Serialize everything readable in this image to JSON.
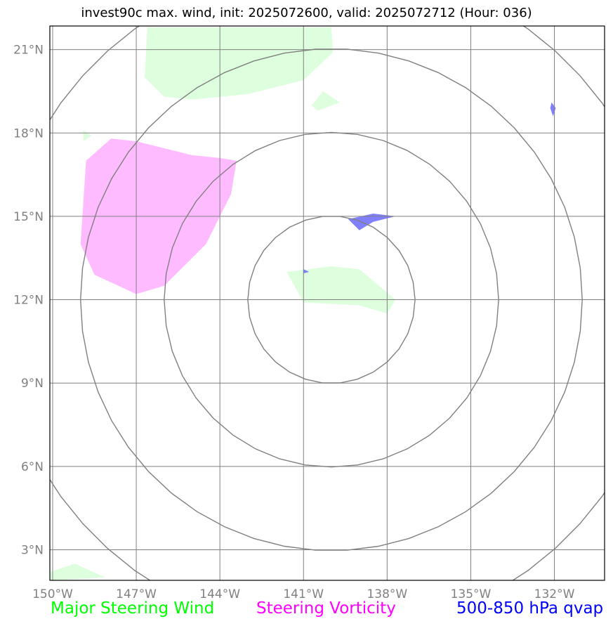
{
  "title": "invest90c max. wind, init: 2025072600, valid: 2025072712 (Hour: 036)",
  "map": {
    "lon_range": [
      -150.1,
      -130.2
    ],
    "lat_range": [
      1.9,
      21.85
    ],
    "center": {
      "lon": -140,
      "lat": 12
    },
    "range_ring_count": 4,
    "grid": true,
    "lon_ticks": [
      {
        "value": -150,
        "label": "150°W"
      },
      {
        "value": -147,
        "label": "147°W"
      },
      {
        "value": -144,
        "label": "144°W"
      },
      {
        "value": -141,
        "label": "141°W"
      },
      {
        "value": -138,
        "label": "138°W"
      },
      {
        "value": -135,
        "label": "135°W"
      },
      {
        "value": -132,
        "label": "132°W"
      }
    ],
    "lat_ticks": [
      {
        "value": 3,
        "label": "3°N"
      },
      {
        "value": 6,
        "label": "6°N"
      },
      {
        "value": 9,
        "label": "9°N"
      },
      {
        "value": 12,
        "label": "12°N"
      },
      {
        "value": 15,
        "label": "15°N"
      },
      {
        "value": 18,
        "label": "18°N"
      },
      {
        "value": 21,
        "label": "21°N"
      }
    ]
  },
  "layers": {
    "wind": {
      "name": "Major Steering Wind",
      "color": "#ddffdd",
      "regions": [
        [
          [
            -146.6,
            21.8
          ],
          [
            -140,
            21.8
          ],
          [
            -139.95,
            20.9
          ],
          [
            -141,
            19.9
          ],
          [
            -143,
            19.4
          ],
          [
            -145,
            19.2
          ],
          [
            -146,
            19.3
          ],
          [
            -146.7,
            20
          ]
        ],
        [
          [
            -140.7,
            19.0
          ],
          [
            -140.3,
            19.5
          ],
          [
            -139.7,
            19.1
          ],
          [
            -140.5,
            18.8
          ]
        ],
        [
          [
            -148.9,
            18.1
          ],
          [
            -148.6,
            17.9
          ],
          [
            -148.9,
            17.7
          ]
        ],
        [
          [
            -141.6,
            13.0
          ],
          [
            -140.0,
            13.2
          ],
          [
            -139.0,
            13.1
          ],
          [
            -137.7,
            12.0
          ],
          [
            -138.0,
            11.5
          ],
          [
            -139,
            11.8
          ],
          [
            -141,
            11.9
          ]
        ],
        [
          [
            -150.1,
            2.2
          ],
          [
            -149.2,
            2.5
          ],
          [
            -148.1,
            2.0
          ],
          [
            -150.1,
            1.9
          ]
        ]
      ]
    },
    "vorticity": {
      "name": "Steering Vorticity",
      "color": "#ffbbff",
      "regions": [
        [
          [
            -147.9,
            17.8
          ],
          [
            -147.0,
            17.7
          ],
          [
            -145.0,
            17.2
          ],
          [
            -144.0,
            17.1
          ],
          [
            -143.4,
            17.0
          ],
          [
            -143.6,
            15.8
          ],
          [
            -144.5,
            14.0
          ],
          [
            -146,
            12.5
          ],
          [
            -147,
            12.2
          ],
          [
            -148.5,
            12.9
          ],
          [
            -149.0,
            14.0
          ],
          [
            -148.8,
            17.0
          ]
        ]
      ]
    },
    "qvap": {
      "name": "500-850 hPa qvap",
      "color": "#8080ff",
      "regions": [
        [
          [
            -139.4,
            14.9
          ],
          [
            -138.5,
            15.1
          ],
          [
            -137.7,
            15.0
          ],
          [
            -138.5,
            14.8
          ],
          [
            -139.0,
            14.5
          ]
        ],
        [
          [
            -132.1,
            19.1
          ],
          [
            -131.95,
            18.9
          ],
          [
            -132.05,
            18.6
          ],
          [
            -132.15,
            18.9
          ]
        ],
        [
          [
            -141.0,
            13.1
          ],
          [
            -140.8,
            13.0
          ],
          [
            -141.0,
            12.95
          ]
        ]
      ]
    }
  }
}
